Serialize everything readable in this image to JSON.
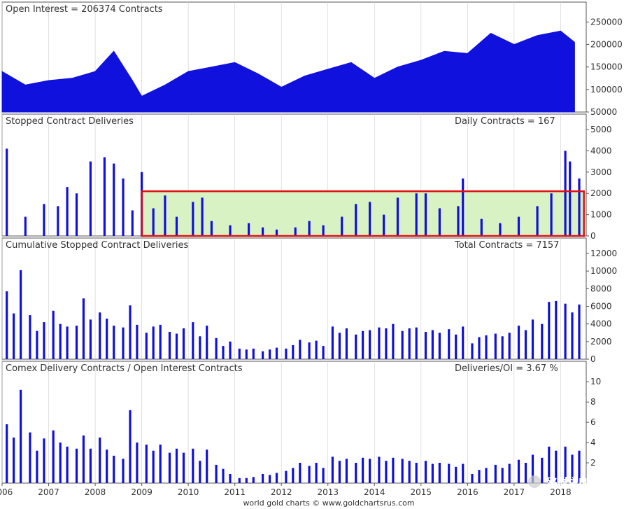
{
  "colors": {
    "series": "#1111dd",
    "axis": "#555555",
    "grid": "#cccccc",
    "highlight_fill": "#d9f2c4",
    "highlight_stroke": "#e01010"
  },
  "footer": "world gold charts © www.goldchartsrus.com",
  "watermark": "路财主N",
  "x_labels": [
    "2006",
    "2007",
    "2008",
    "2009",
    "2010",
    "2011",
    "2012",
    "2013",
    "2014",
    "2015",
    "2016",
    "2017",
    "2018"
  ],
  "chart_data": [
    {
      "type": "area",
      "title": "Open Interest = 206374 Contracts",
      "right_label": "",
      "ylim": [
        50000,
        260000
      ],
      "yticks": [
        50000,
        100000,
        150000,
        200000,
        250000
      ],
      "ytick_labels": [
        "50000",
        "100000",
        "150000",
        "200000",
        "250000"
      ],
      "x": [
        2006.0,
        2006.5,
        2007.0,
        2007.5,
        2008.0,
        2008.4,
        2008.8,
        2009.0,
        2009.5,
        2010.0,
        2010.5,
        2011.0,
        2011.5,
        2012.0,
        2012.5,
        2013.0,
        2013.5,
        2014.0,
        2014.5,
        2015.0,
        2015.5,
        2016.0,
        2016.5,
        2017.0,
        2017.5,
        2018.0,
        2018.3
      ],
      "y": [
        140000,
        110000,
        120000,
        125000,
        140000,
        185000,
        120000,
        85000,
        110000,
        140000,
        150000,
        160000,
        135000,
        105000,
        130000,
        145000,
        160000,
        125000,
        150000,
        165000,
        185000,
        180000,
        225000,
        200000,
        220000,
        230000,
        205000
      ]
    },
    {
      "type": "bar",
      "title": "Stopped Contract Deliveries",
      "right_label": "Daily Contracts = 167",
      "ylim": [
        0,
        5000
      ],
      "yticks": [
        0,
        1000,
        2000,
        3000,
        4000,
        5000
      ],
      "ytick_labels": [
        "0",
        "1000",
        "2000",
        "3000",
        "4000",
        "5000"
      ],
      "highlight_x": [
        2009.0,
        2018.5
      ],
      "highlight_y": [
        0,
        2100
      ],
      "x": [
        2006.1,
        2006.5,
        2006.9,
        2007.2,
        2007.4,
        2007.6,
        2007.9,
        2008.2,
        2008.4,
        2008.6,
        2008.8,
        2009.0,
        2009.25,
        2009.5,
        2009.75,
        2010.1,
        2010.3,
        2010.5,
        2010.9,
        2011.3,
        2011.6,
        2011.9,
        2012.3,
        2012.6,
        2012.9,
        2013.3,
        2013.6,
        2013.9,
        2014.2,
        2014.5,
        2014.9,
        2015.1,
        2015.4,
        2015.8,
        2015.9,
        2016.3,
        2016.7,
        2017.1,
        2017.5,
        2017.8,
        2018.1,
        2018.2,
        2018.4
      ],
      "y": [
        4100,
        900,
        1500,
        1400,
        2300,
        2000,
        3500,
        3700,
        3400,
        2700,
        1200,
        3000,
        1300,
        1900,
        900,
        1600,
        1800,
        700,
        500,
        600,
        400,
        300,
        400,
        700,
        500,
        900,
        1500,
        1600,
        1000,
        1800,
        2000,
        2000,
        1300,
        1400,
        2700,
        800,
        600,
        900,
        1400,
        2000,
        4000,
        3500,
        2700
      ]
    },
    {
      "type": "bar",
      "title": "Cumulative Stopped Contract Deliveries",
      "right_label": "Total Contracts = 7157",
      "ylim": [
        0,
        12000
      ],
      "yticks": [
        0,
        2000,
        4000,
        6000,
        8000,
        10000,
        12000
      ],
      "ytick_labels": [
        "0",
        "2000",
        "4000",
        "6000",
        "8000",
        "10000",
        "12000"
      ],
      "x": [
        2006.1,
        2006.25,
        2006.4,
        2006.6,
        2006.75,
        2006.9,
        2007.1,
        2007.25,
        2007.4,
        2007.6,
        2007.75,
        2007.9,
        2008.1,
        2008.25,
        2008.4,
        2008.6,
        2008.75,
        2008.9,
        2009.1,
        2009.25,
        2009.4,
        2009.6,
        2009.75,
        2009.9,
        2010.1,
        2010.25,
        2010.4,
        2010.6,
        2010.75,
        2010.9,
        2011.1,
        2011.25,
        2011.4,
        2011.6,
        2011.75,
        2011.9,
        2012.1,
        2012.25,
        2012.4,
        2012.6,
        2012.75,
        2012.9,
        2013.1,
        2013.25,
        2013.4,
        2013.6,
        2013.75,
        2013.9,
        2014.1,
        2014.25,
        2014.4,
        2014.6,
        2014.75,
        2014.9,
        2015.1,
        2015.25,
        2015.4,
        2015.6,
        2015.75,
        2015.9,
        2016.1,
        2016.25,
        2016.4,
        2016.6,
        2016.75,
        2016.9,
        2017.1,
        2017.25,
        2017.4,
        2017.6,
        2017.75,
        2017.9,
        2018.1,
        2018.25,
        2018.4
      ],
      "y": [
        7700,
        5200,
        10100,
        5000,
        3200,
        4200,
        5500,
        4000,
        3700,
        3800,
        6900,
        4500,
        5300,
        4600,
        3800,
        3600,
        6100,
        3900,
        3000,
        3700,
        3900,
        3100,
        2900,
        3500,
        4200,
        2600,
        3800,
        2400,
        1500,
        2000,
        1200,
        1100,
        1200,
        900,
        1100,
        1300,
        1200,
        1600,
        2200,
        1900,
        2100,
        1500,
        3700,
        3000,
        3500,
        2800,
        3200,
        3300,
        3600,
        3500,
        4000,
        3200,
        3500,
        3600,
        3100,
        3300,
        3000,
        3400,
        2800,
        3700,
        1800,
        2500,
        2700,
        2900,
        2600,
        3000,
        3800,
        3300,
        4500,
        4000,
        6500,
        6600,
        6300,
        5300,
        6200
      ]
    },
    {
      "type": "bar",
      "title": "Comex Delivery Contracts / Open Interest Contracts",
      "right_label": "Deliveries/OI = 3.67 %",
      "ylim": [
        0,
        10.5
      ],
      "yticks": [
        2,
        4,
        6,
        8,
        10
      ],
      "ytick_labels": [
        "2",
        "4",
        "6",
        "8",
        "10"
      ],
      "x": [
        2006.1,
        2006.25,
        2006.4,
        2006.6,
        2006.75,
        2006.9,
        2007.1,
        2007.25,
        2007.4,
        2007.6,
        2007.75,
        2007.9,
        2008.1,
        2008.25,
        2008.4,
        2008.6,
        2008.75,
        2008.9,
        2009.1,
        2009.25,
        2009.4,
        2009.6,
        2009.75,
        2009.9,
        2010.1,
        2010.25,
        2010.4,
        2010.6,
        2010.75,
        2010.9,
        2011.1,
        2011.25,
        2011.4,
        2011.6,
        2011.75,
        2011.9,
        2012.1,
        2012.25,
        2012.4,
        2012.6,
        2012.75,
        2012.9,
        2013.1,
        2013.25,
        2013.4,
        2013.6,
        2013.75,
        2013.9,
        2014.1,
        2014.25,
        2014.4,
        2014.6,
        2014.75,
        2014.9,
        2015.1,
        2015.25,
        2015.4,
        2015.6,
        2015.75,
        2015.9,
        2016.1,
        2016.25,
        2016.4,
        2016.6,
        2016.75,
        2016.9,
        2017.1,
        2017.25,
        2017.4,
        2017.6,
        2017.75,
        2017.9,
        2018.1,
        2018.25,
        2018.4
      ],
      "y": [
        5.8,
        4.5,
        9.2,
        5.0,
        3.2,
        4.4,
        5.2,
        4.0,
        3.6,
        3.4,
        4.7,
        3.4,
        4.5,
        3.3,
        2.7,
        2.4,
        7.2,
        4.0,
        3.8,
        3.2,
        3.8,
        3.0,
        3.4,
        3.0,
        3.4,
        2.2,
        3.3,
        1.8,
        1.4,
        0.9,
        0.5,
        0.5,
        0.6,
        0.9,
        0.8,
        1.0,
        1.2,
        1.5,
        2.0,
        1.7,
        2.0,
        1.5,
        2.6,
        2.2,
        2.4,
        2.0,
        2.5,
        2.4,
        2.6,
        2.2,
        2.5,
        2.4,
        2.2,
        2.0,
        2.2,
        1.9,
        2.0,
        1.9,
        1.6,
        1.9,
        0.9,
        1.3,
        1.5,
        1.8,
        1.5,
        1.9,
        2.3,
        2.0,
        2.8,
        2.5,
        3.6,
        3.2,
        3.6,
        2.8,
        3.2
      ]
    }
  ]
}
